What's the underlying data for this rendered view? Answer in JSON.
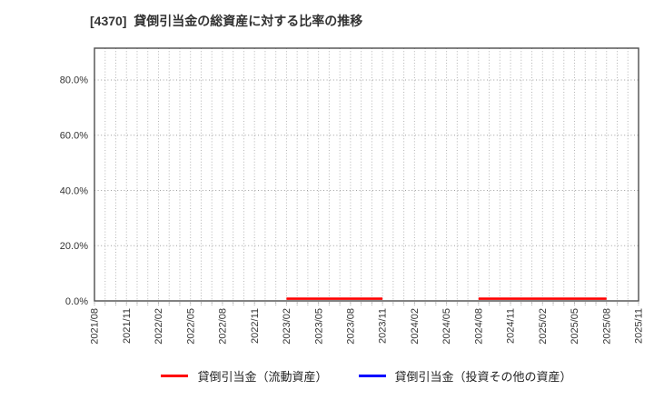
{
  "chart_data": {
    "type": "line",
    "title": "[4370]  貸倒引当金の総資産に対する比率の推移",
    "xlabel": "",
    "ylabel": "",
    "categories": [
      "2021/08",
      "2021/11",
      "2022/02",
      "2022/05",
      "2022/08",
      "2022/11",
      "2023/02",
      "2023/05",
      "2023/08",
      "2023/11",
      "2024/02",
      "2024/05",
      "2024/08",
      "2024/11",
      "2025/02",
      "2025/05",
      "2025/08",
      "2025/11"
    ],
    "series": [
      {
        "name": "貸倒引当金（流動資産）",
        "color": "#ff0000",
        "values": [
          null,
          null,
          null,
          null,
          null,
          null,
          0.8,
          0.8,
          0.8,
          0.8,
          null,
          null,
          0.8,
          0.8,
          0.8,
          0.8,
          0.8,
          null
        ]
      },
      {
        "name": "貸倒引当金（投資その他の資産）",
        "color": "#0000ff",
        "values": [
          null,
          null,
          null,
          null,
          null,
          null,
          null,
          null,
          null,
          null,
          null,
          null,
          null,
          null,
          null,
          null,
          null,
          null
        ]
      }
    ],
    "yticks": [
      {
        "value": 0,
        "label": "0.0%"
      },
      {
        "value": 20,
        "label": "20.0%"
      },
      {
        "value": 40,
        "label": "40.0%"
      },
      {
        "value": 60,
        "label": "60.0%"
      },
      {
        "value": 80,
        "label": "80.0%"
      }
    ],
    "ylim": [
      0,
      91.5
    ],
    "months_per_category": 3,
    "grid": true,
    "legend_position": "bottom"
  },
  "legend": [
    {
      "label": "貸倒引当金（流動資産）",
      "color": "#ff0000"
    },
    {
      "label": "貸倒引当金（投資その他の資産）",
      "color": "#0000ff"
    }
  ],
  "style": {
    "grid_color": "#b3b3b3",
    "hgrid_color": "#9f9f9f",
    "border_color": "#4d4d4d",
    "tick_color": "#8a8a8a"
  }
}
